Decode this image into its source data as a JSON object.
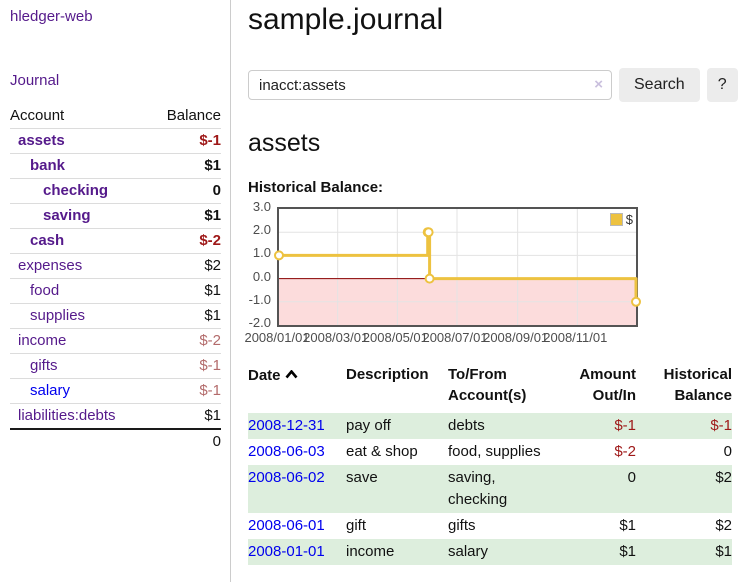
{
  "app": {
    "brand": "hledger-web"
  },
  "colors": {
    "link_purple": "#551a8b",
    "link_blue": "#0000ee",
    "negative_strong": "#9e1818",
    "negative_soft": "#b36b6b",
    "row_stripe_green": "#ddeedd",
    "series_gold": "#edc240",
    "negative_region_pink": "#fcdcdc",
    "zero_line_red": "#8b0000"
  },
  "sidebar": {
    "nav": {
      "journal_label": "Journal"
    },
    "accounts": {
      "headers": {
        "account": "Account",
        "balance": "Balance"
      },
      "rows": [
        {
          "name": "assets",
          "balance": "$-1"
        },
        {
          "name": "bank",
          "balance": "$1"
        },
        {
          "name": "checking",
          "balance": "0"
        },
        {
          "name": "saving",
          "balance": "$1"
        },
        {
          "name": "cash",
          "balance": "$-2"
        },
        {
          "name": "expenses",
          "balance": "$2"
        },
        {
          "name": "food",
          "balance": "$1"
        },
        {
          "name": "supplies",
          "balance": "$1"
        },
        {
          "name": "income",
          "balance": "$-2"
        },
        {
          "name": "gifts",
          "balance": "$-1"
        },
        {
          "name": "salary",
          "balance": "$-1"
        },
        {
          "name": "liabilities:debts",
          "balance": "$1"
        }
      ],
      "total": "0"
    }
  },
  "header": {
    "title": "sample.journal"
  },
  "search": {
    "value": "inacct:assets",
    "clear_icon": "×",
    "button_label": "Search",
    "help_label": "?"
  },
  "account_page": {
    "title": "assets",
    "chart_label": "Historical Balance:"
  },
  "chart_data": {
    "type": "line",
    "step": true,
    "title": "Historical Balance",
    "series": [
      {
        "name": "$",
        "color": "#edc240",
        "points": [
          [
            "2008/01/01",
            1
          ],
          [
            "2008/06/01",
            2
          ],
          [
            "2008/06/02",
            2
          ],
          [
            "2008/06/03",
            0
          ],
          [
            "2008/12/31",
            -1
          ]
        ]
      }
    ],
    "x_range": [
      "2008/01/01",
      "2008/12/31"
    ],
    "ylim": [
      -2,
      3
    ],
    "yticks": [
      "3.0",
      "2.0",
      "1.0",
      "0.0",
      "-1.0",
      "-2.0"
    ],
    "xticks": [
      "2008/01/01",
      "2008/03/01",
      "2008/05/01",
      "2008/07/01",
      "2008/09/01",
      "2008/11/01"
    ],
    "legend": {
      "label": "$",
      "position": "top-right"
    },
    "negative_region_color": "#fcdcdc",
    "zero_line_color": "#8b0000",
    "grid": true
  },
  "register_table": {
    "headers": [
      "Date",
      "Description",
      "To/From Account(s)",
      "Amount Out/In",
      "Historical Balance"
    ],
    "sort": {
      "column": "Date",
      "direction": "ascending",
      "icon": "chevron-up"
    },
    "rows": [
      {
        "date": "2008-12-31",
        "description": "pay off",
        "accounts": "debts",
        "amount": "$-1",
        "balance": "$-1"
      },
      {
        "date": "2008-06-03",
        "description": "eat & shop",
        "accounts": "food, supplies",
        "amount": "$-2",
        "balance": "0"
      },
      {
        "date": "2008-06-02",
        "description": "save",
        "accounts": "saving, checking",
        "amount": "0",
        "balance": "$2"
      },
      {
        "date": "2008-06-01",
        "description": "gift",
        "accounts": "gifts",
        "amount": "$1",
        "balance": "$2"
      },
      {
        "date": "2008-01-01",
        "description": "income",
        "accounts": "salary",
        "amount": "$1",
        "balance": "$1"
      }
    ]
  }
}
